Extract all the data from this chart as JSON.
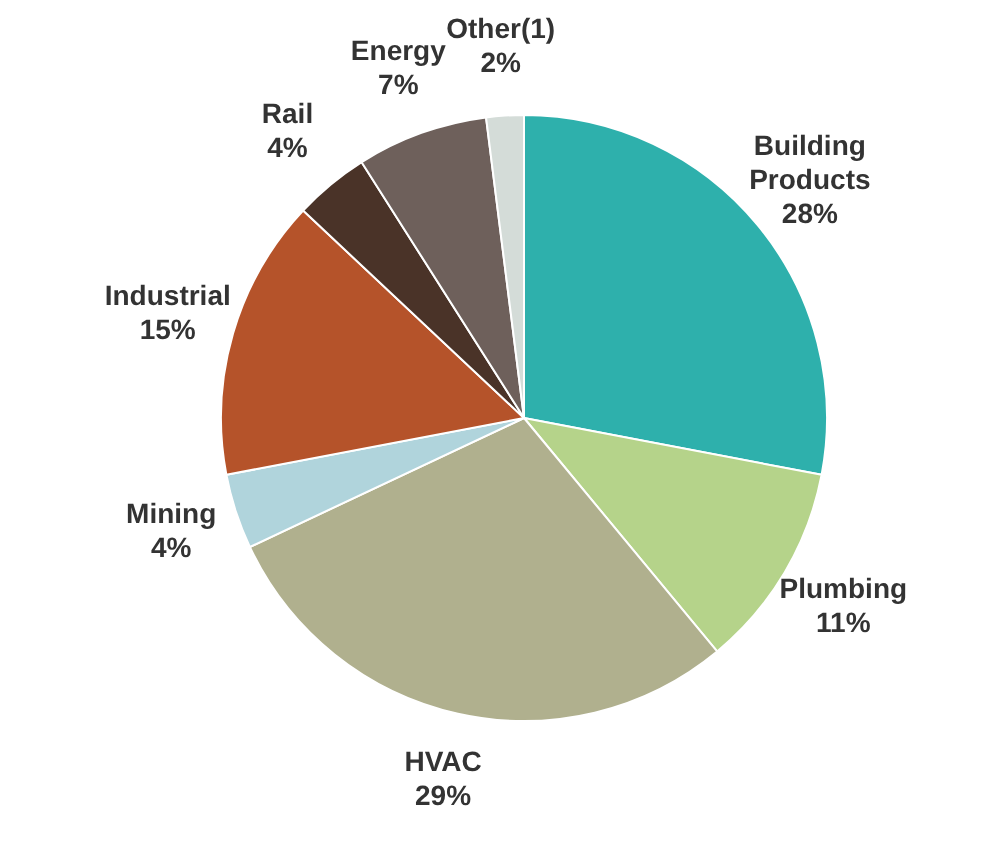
{
  "chart_data": {
    "type": "pie",
    "categories": [
      "Building Products",
      "Plumbing",
      "HVAC",
      "Mining",
      "Industrial",
      "Rail",
      "Energy",
      "Other(1)"
    ],
    "values": [
      28,
      11,
      29,
      4,
      15,
      4,
      7,
      2
    ],
    "value_labels": [
      "28%",
      "11%",
      "29%",
      "4%",
      "15%",
      "4%",
      "7%",
      "2%"
    ],
    "colors": [
      "#2eb0ac",
      "#b5d38a",
      "#b0b08e",
      "#b0d4dc",
      "#b5532a",
      "#4a3328",
      "#6e605b",
      "#d4dcd8"
    ],
    "legend": false
  }
}
